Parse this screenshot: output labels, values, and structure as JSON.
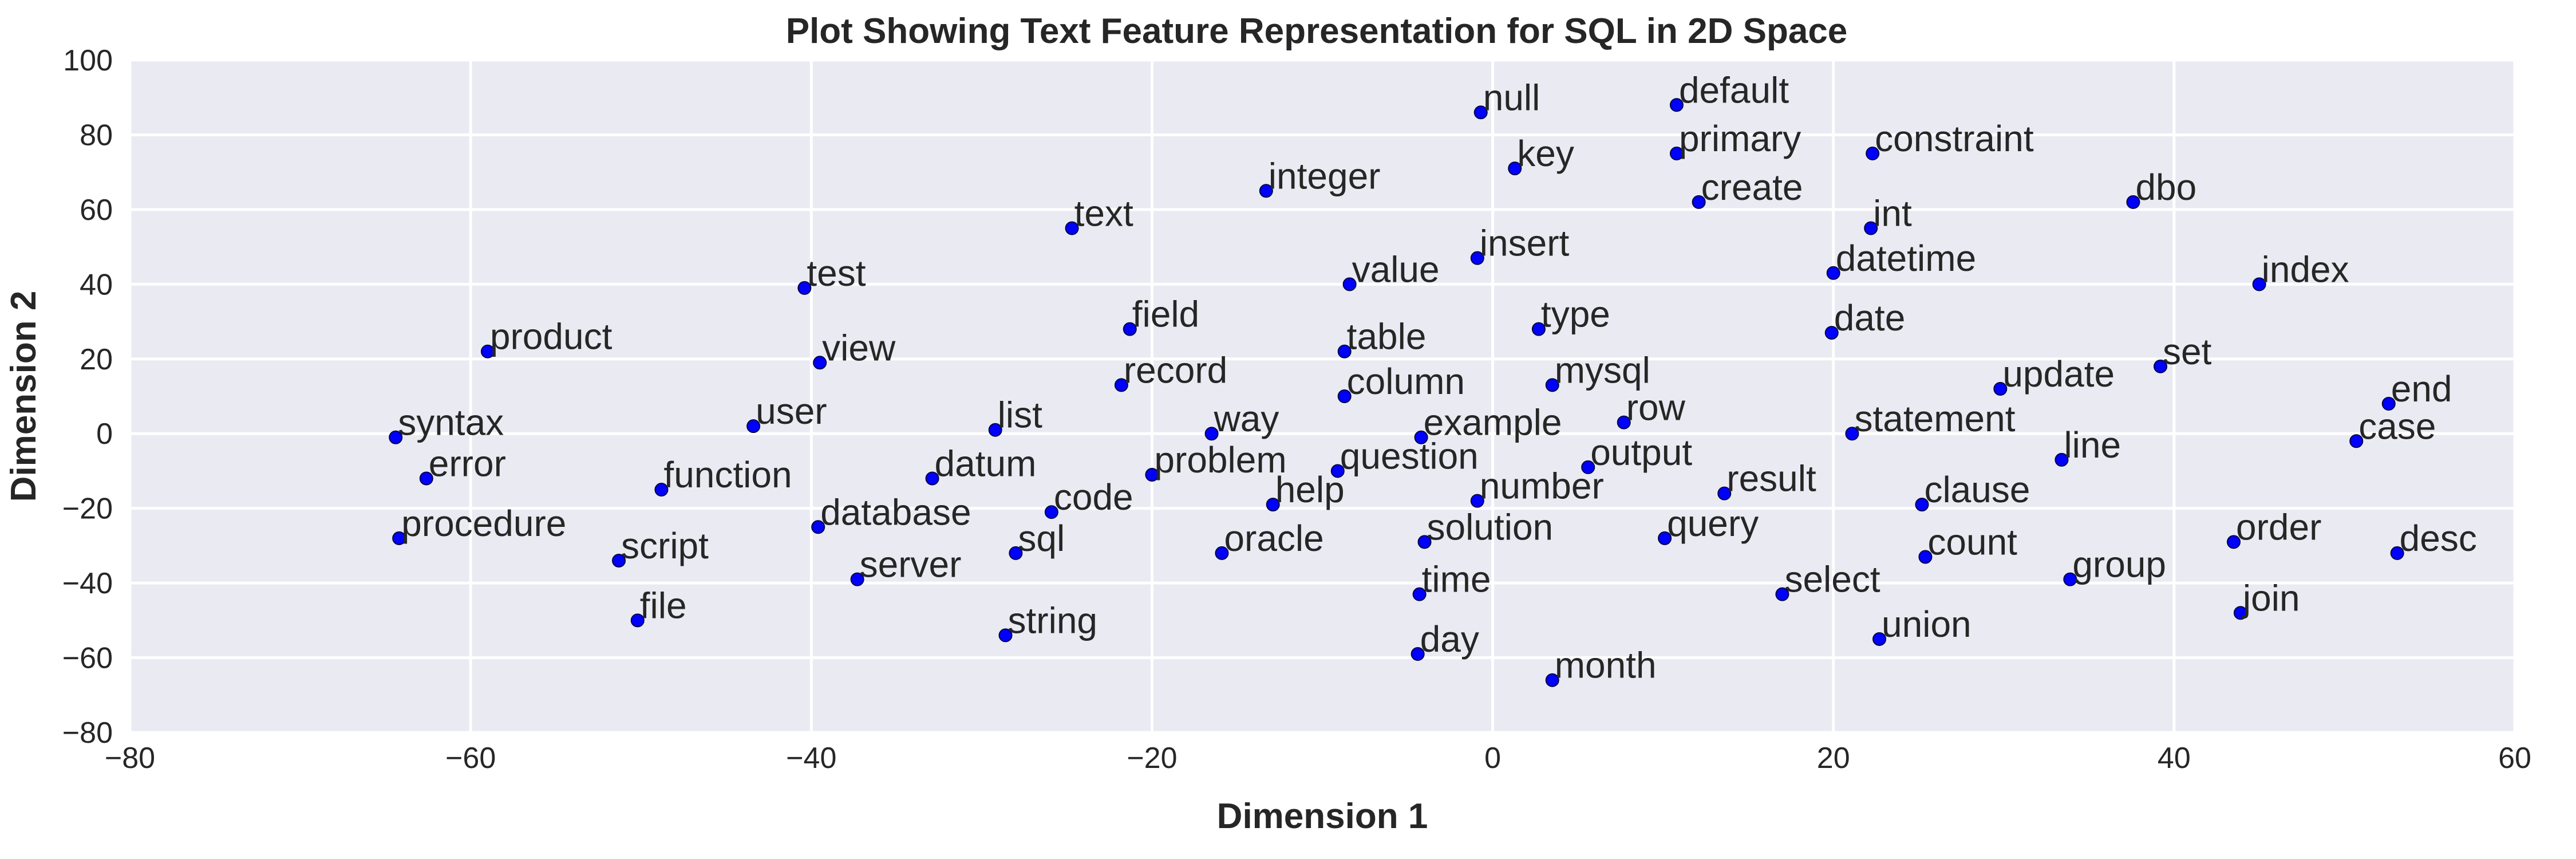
{
  "chart_data": {
    "type": "scatter",
    "title": "Plot Showing Text Feature Representation for SQL in 2D Space",
    "xlabel": "Dimension 1",
    "ylabel": "Dimension 2",
    "xlim": [
      -80,
      60
    ],
    "ylim": [
      -80,
      100
    ],
    "xticks": [
      -80,
      -60,
      -40,
      -20,
      0,
      20,
      40,
      60
    ],
    "yticks": [
      -80,
      -60,
      -40,
      -20,
      0,
      20,
      40,
      60,
      80,
      100
    ],
    "xtick_labels": [
      "−80",
      "−60",
      "−40",
      "−20",
      "0",
      "20",
      "40",
      "60"
    ],
    "ytick_labels": [
      "−80",
      "−60",
      "−40",
      "−20",
      "0",
      "20",
      "40",
      "60",
      "80",
      "100"
    ],
    "grid": true,
    "background": "#eaeaf2",
    "point_color": "#0000ff",
    "points": [
      {
        "label": "null",
        "x": -0.7,
        "y": 86
      },
      {
        "label": "default",
        "x": 10.8,
        "y": 88
      },
      {
        "label": "primary",
        "x": 10.8,
        "y": 75
      },
      {
        "label": "constraint",
        "x": 22.3,
        "y": 75
      },
      {
        "label": "key",
        "x": 1.3,
        "y": 71
      },
      {
        "label": "integer",
        "x": -13.3,
        "y": 65
      },
      {
        "label": "create",
        "x": 12.1,
        "y": 62
      },
      {
        "label": "dbo",
        "x": 37.6,
        "y": 62
      },
      {
        "label": "text",
        "x": -24.7,
        "y": 55
      },
      {
        "label": "int",
        "x": 22.2,
        "y": 55
      },
      {
        "label": "insert",
        "x": -0.9,
        "y": 47
      },
      {
        "label": "datetime",
        "x": 20,
        "y": 43
      },
      {
        "label": "value",
        "x": -8.4,
        "y": 40
      },
      {
        "label": "index",
        "x": 45,
        "y": 40
      },
      {
        "label": "test",
        "x": -40.4,
        "y": 39
      },
      {
        "label": "field",
        "x": -21.3,
        "y": 28
      },
      {
        "label": "type",
        "x": 2.7,
        "y": 28
      },
      {
        "label": "date",
        "x": 19.9,
        "y": 27
      },
      {
        "label": "product",
        "x": -59,
        "y": 22
      },
      {
        "label": "view",
        "x": -39.5,
        "y": 19
      },
      {
        "label": "table",
        "x": -8.7,
        "y": 22
      },
      {
        "label": "set",
        "x": 39.2,
        "y": 18
      },
      {
        "label": "record",
        "x": -21.8,
        "y": 13
      },
      {
        "label": "mysql",
        "x": 3.5,
        "y": 13
      },
      {
        "label": "update",
        "x": 29.8,
        "y": 12
      },
      {
        "label": "column",
        "x": -8.7,
        "y": 10
      },
      {
        "label": "end",
        "x": 52.6,
        "y": 8
      },
      {
        "label": "row",
        "x": 7.7,
        "y": 3
      },
      {
        "label": "user",
        "x": -43.4,
        "y": 2
      },
      {
        "label": "list",
        "x": -29.2,
        "y": 1
      },
      {
        "label": "syntax",
        "x": -64.4,
        "y": -1
      },
      {
        "label": "way",
        "x": -16.5,
        "y": 0
      },
      {
        "label": "example",
        "x": -4.2,
        "y": -1
      },
      {
        "label": "statement",
        "x": 21.1,
        "y": 0
      },
      {
        "label": "case",
        "x": 50.7,
        "y": -2
      },
      {
        "label": "line",
        "x": 33.4,
        "y": -7
      },
      {
        "label": "question",
        "x": -9.1,
        "y": -10
      },
      {
        "label": "output",
        "x": 5.6,
        "y": -9
      },
      {
        "label": "error",
        "x": -62.6,
        "y": -12
      },
      {
        "label": "datum",
        "x": -32.9,
        "y": -12
      },
      {
        "label": "problem",
        "x": -20,
        "y": -11
      },
      {
        "label": "function",
        "x": -48.8,
        "y": -15
      },
      {
        "label": "result",
        "x": 13.6,
        "y": -16
      },
      {
        "label": "number",
        "x": -0.9,
        "y": -18
      },
      {
        "label": "help",
        "x": -12.9,
        "y": -19
      },
      {
        "label": "clause",
        "x": 25.2,
        "y": -19
      },
      {
        "label": "code",
        "x": -25.9,
        "y": -21
      },
      {
        "label": "database",
        "x": -39.6,
        "y": -25
      },
      {
        "label": "procedure",
        "x": -64.2,
        "y": -28
      },
      {
        "label": "query",
        "x": 10.1,
        "y": -28
      },
      {
        "label": "order",
        "x": 43.5,
        "y": -29
      },
      {
        "label": "solution",
        "x": -4,
        "y": -29
      },
      {
        "label": "script",
        "x": -51.3,
        "y": -34
      },
      {
        "label": "sql",
        "x": -28,
        "y": -32
      },
      {
        "label": "oracle",
        "x": -15.9,
        "y": -32
      },
      {
        "label": "count",
        "x": 25.4,
        "y": -33
      },
      {
        "label": "desc",
        "x": 53.1,
        "y": -32
      },
      {
        "label": "server",
        "x": -37.3,
        "y": -39
      },
      {
        "label": "group",
        "x": 33.9,
        "y": -39
      },
      {
        "label": "time",
        "x": -4.3,
        "y": -43
      },
      {
        "label": "select",
        "x": 17,
        "y": -43
      },
      {
        "label": "join",
        "x": 43.9,
        "y": -48
      },
      {
        "label": "file",
        "x": -50.2,
        "y": -50
      },
      {
        "label": "string",
        "x": -28.6,
        "y": -54
      },
      {
        "label": "union",
        "x": 22.7,
        "y": -55
      },
      {
        "label": "day",
        "x": -4.4,
        "y": -59
      },
      {
        "label": "month",
        "x": 3.5,
        "y": -66
      }
    ]
  }
}
